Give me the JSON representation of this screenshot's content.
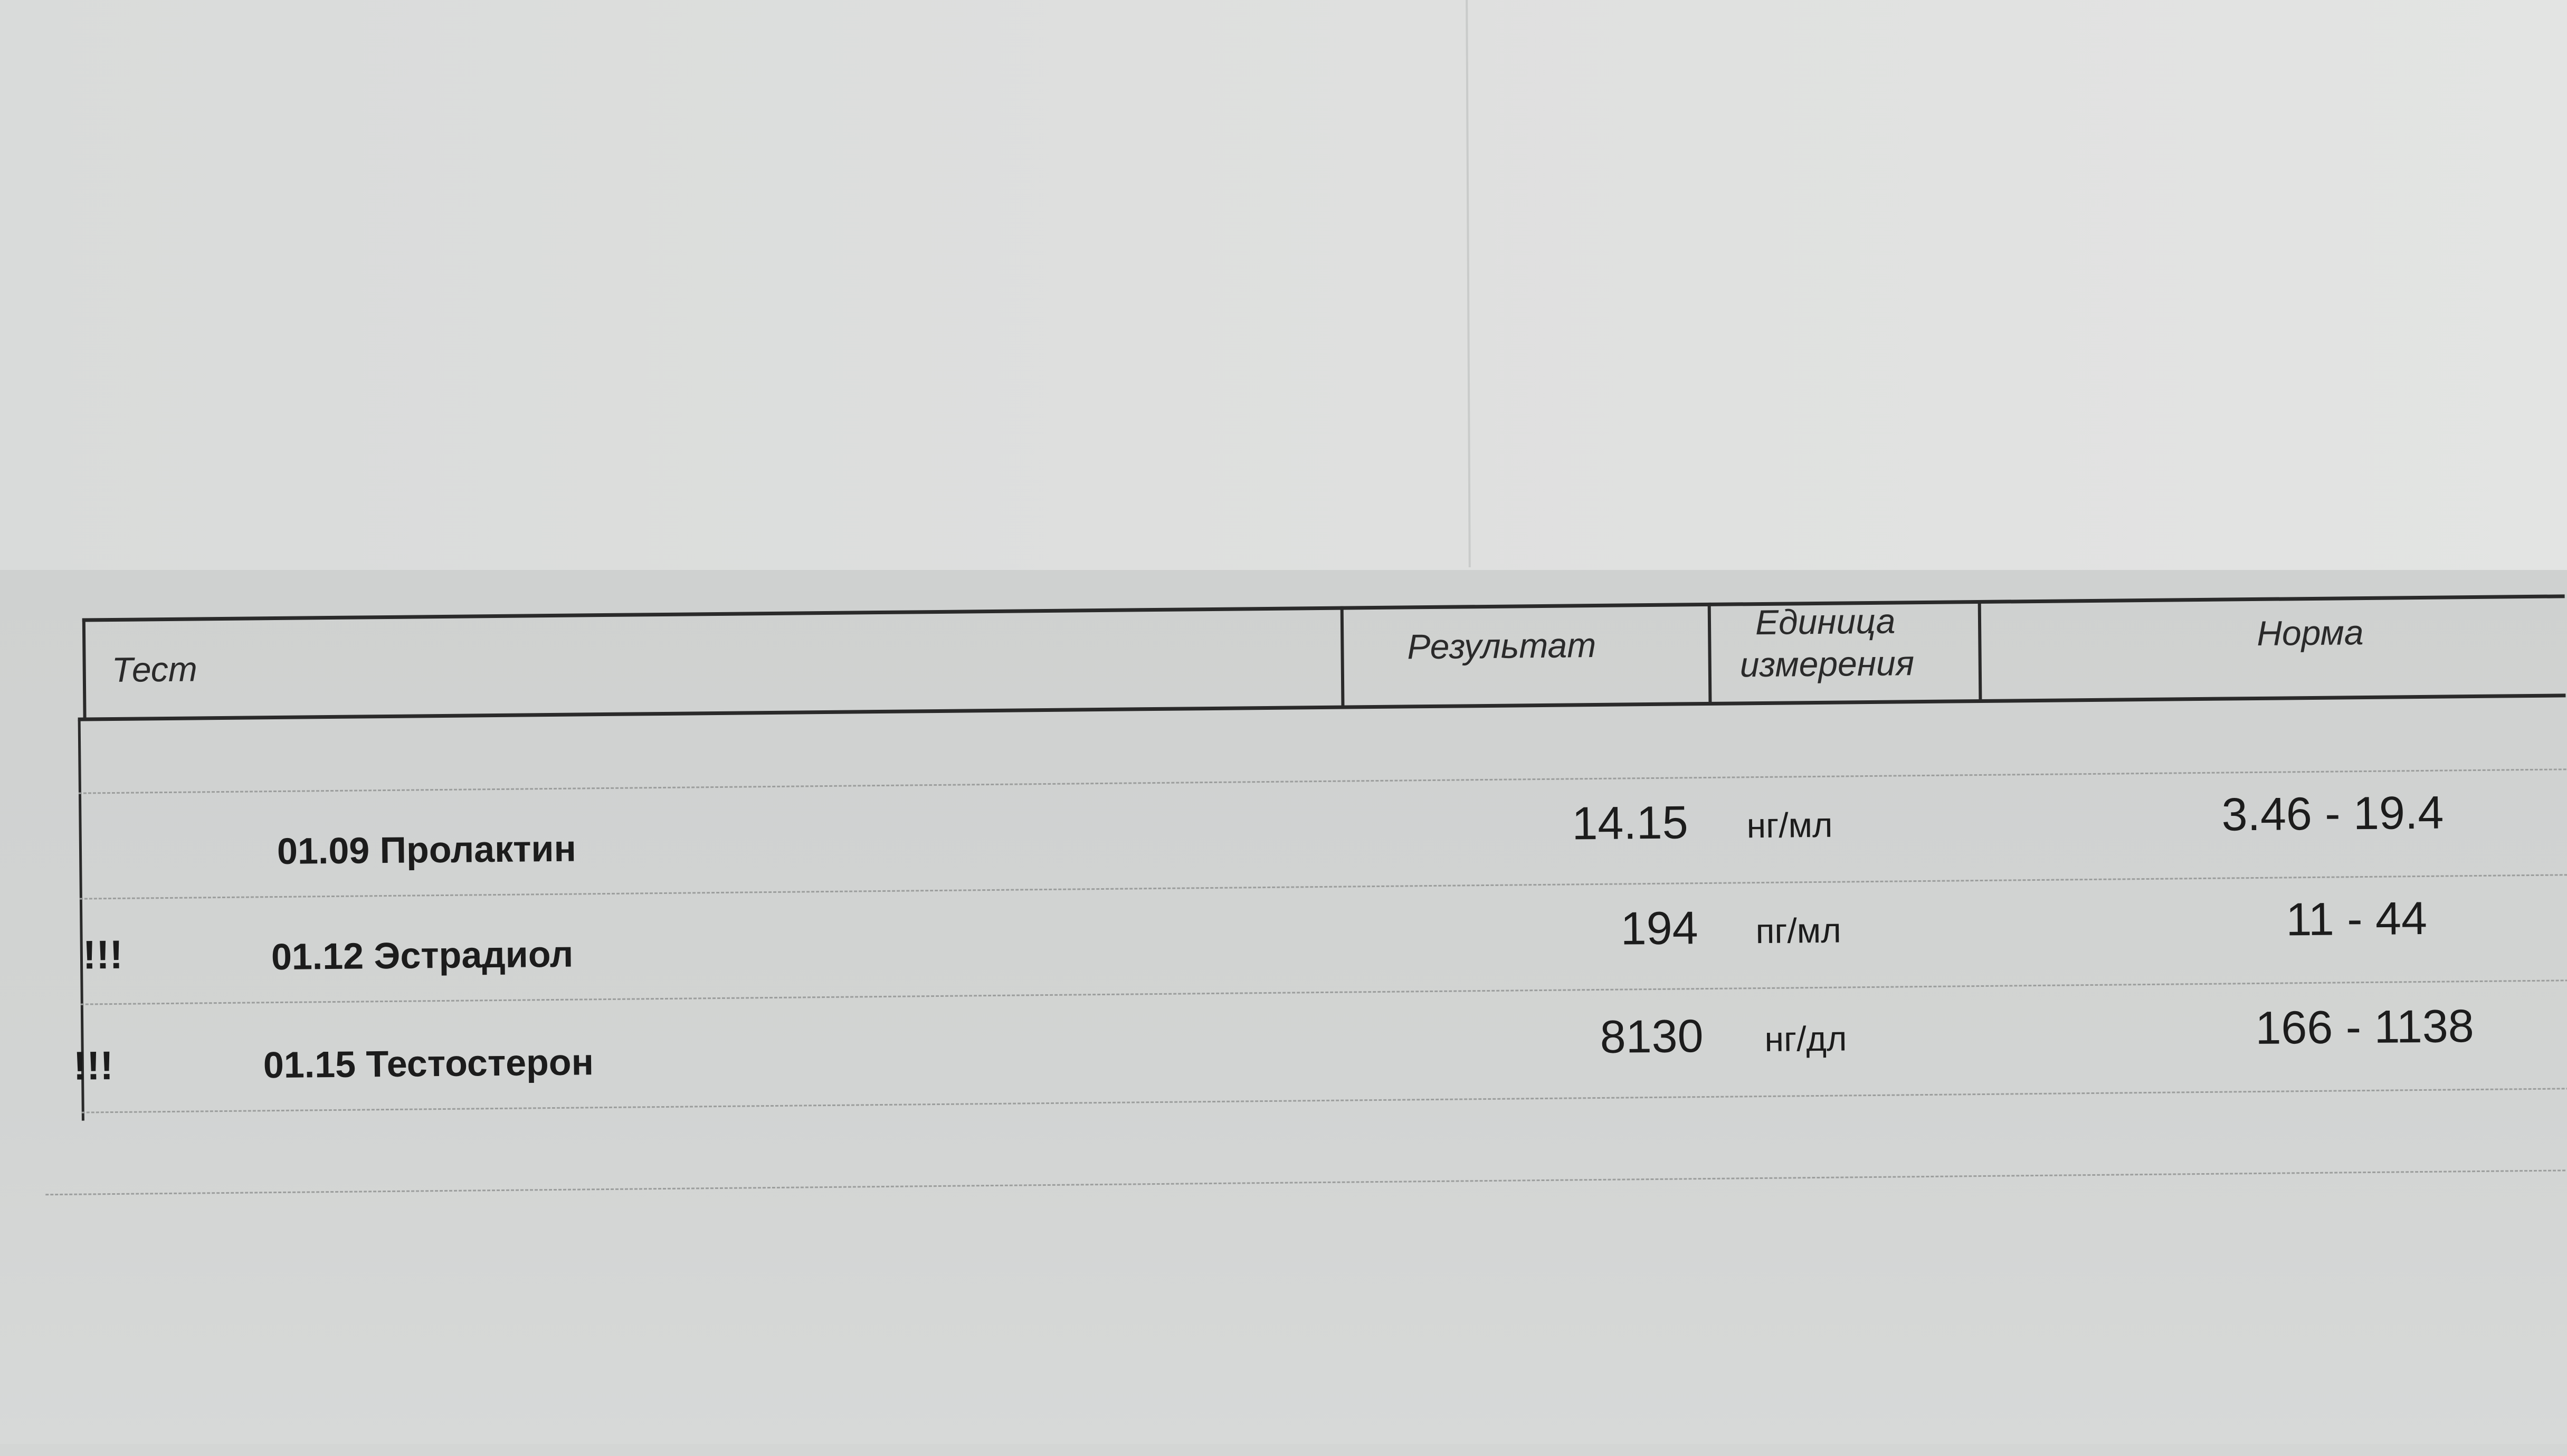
{
  "table": {
    "headers": {
      "test": "Тест",
      "result": "Результат",
      "unit_line1": "Единица",
      "unit_line2": "измерения",
      "norm": "Норма"
    },
    "rows": [
      {
        "flag": "",
        "test": "01.09 Пролактин",
        "result": "14.15",
        "unit": "нг/мл",
        "norm": "3.46 - 19.4"
      },
      {
        "flag": "!!!",
        "test": "01.12 Эстрадиол",
        "result": "194",
        "unit": "пг/мл",
        "norm": "11 - 44"
      },
      {
        "flag": "!!!",
        "test": "01.15 Тестостерон",
        "result": "8130",
        "unit": "нг/дл",
        "norm": "166 - 1138"
      }
    ]
  }
}
